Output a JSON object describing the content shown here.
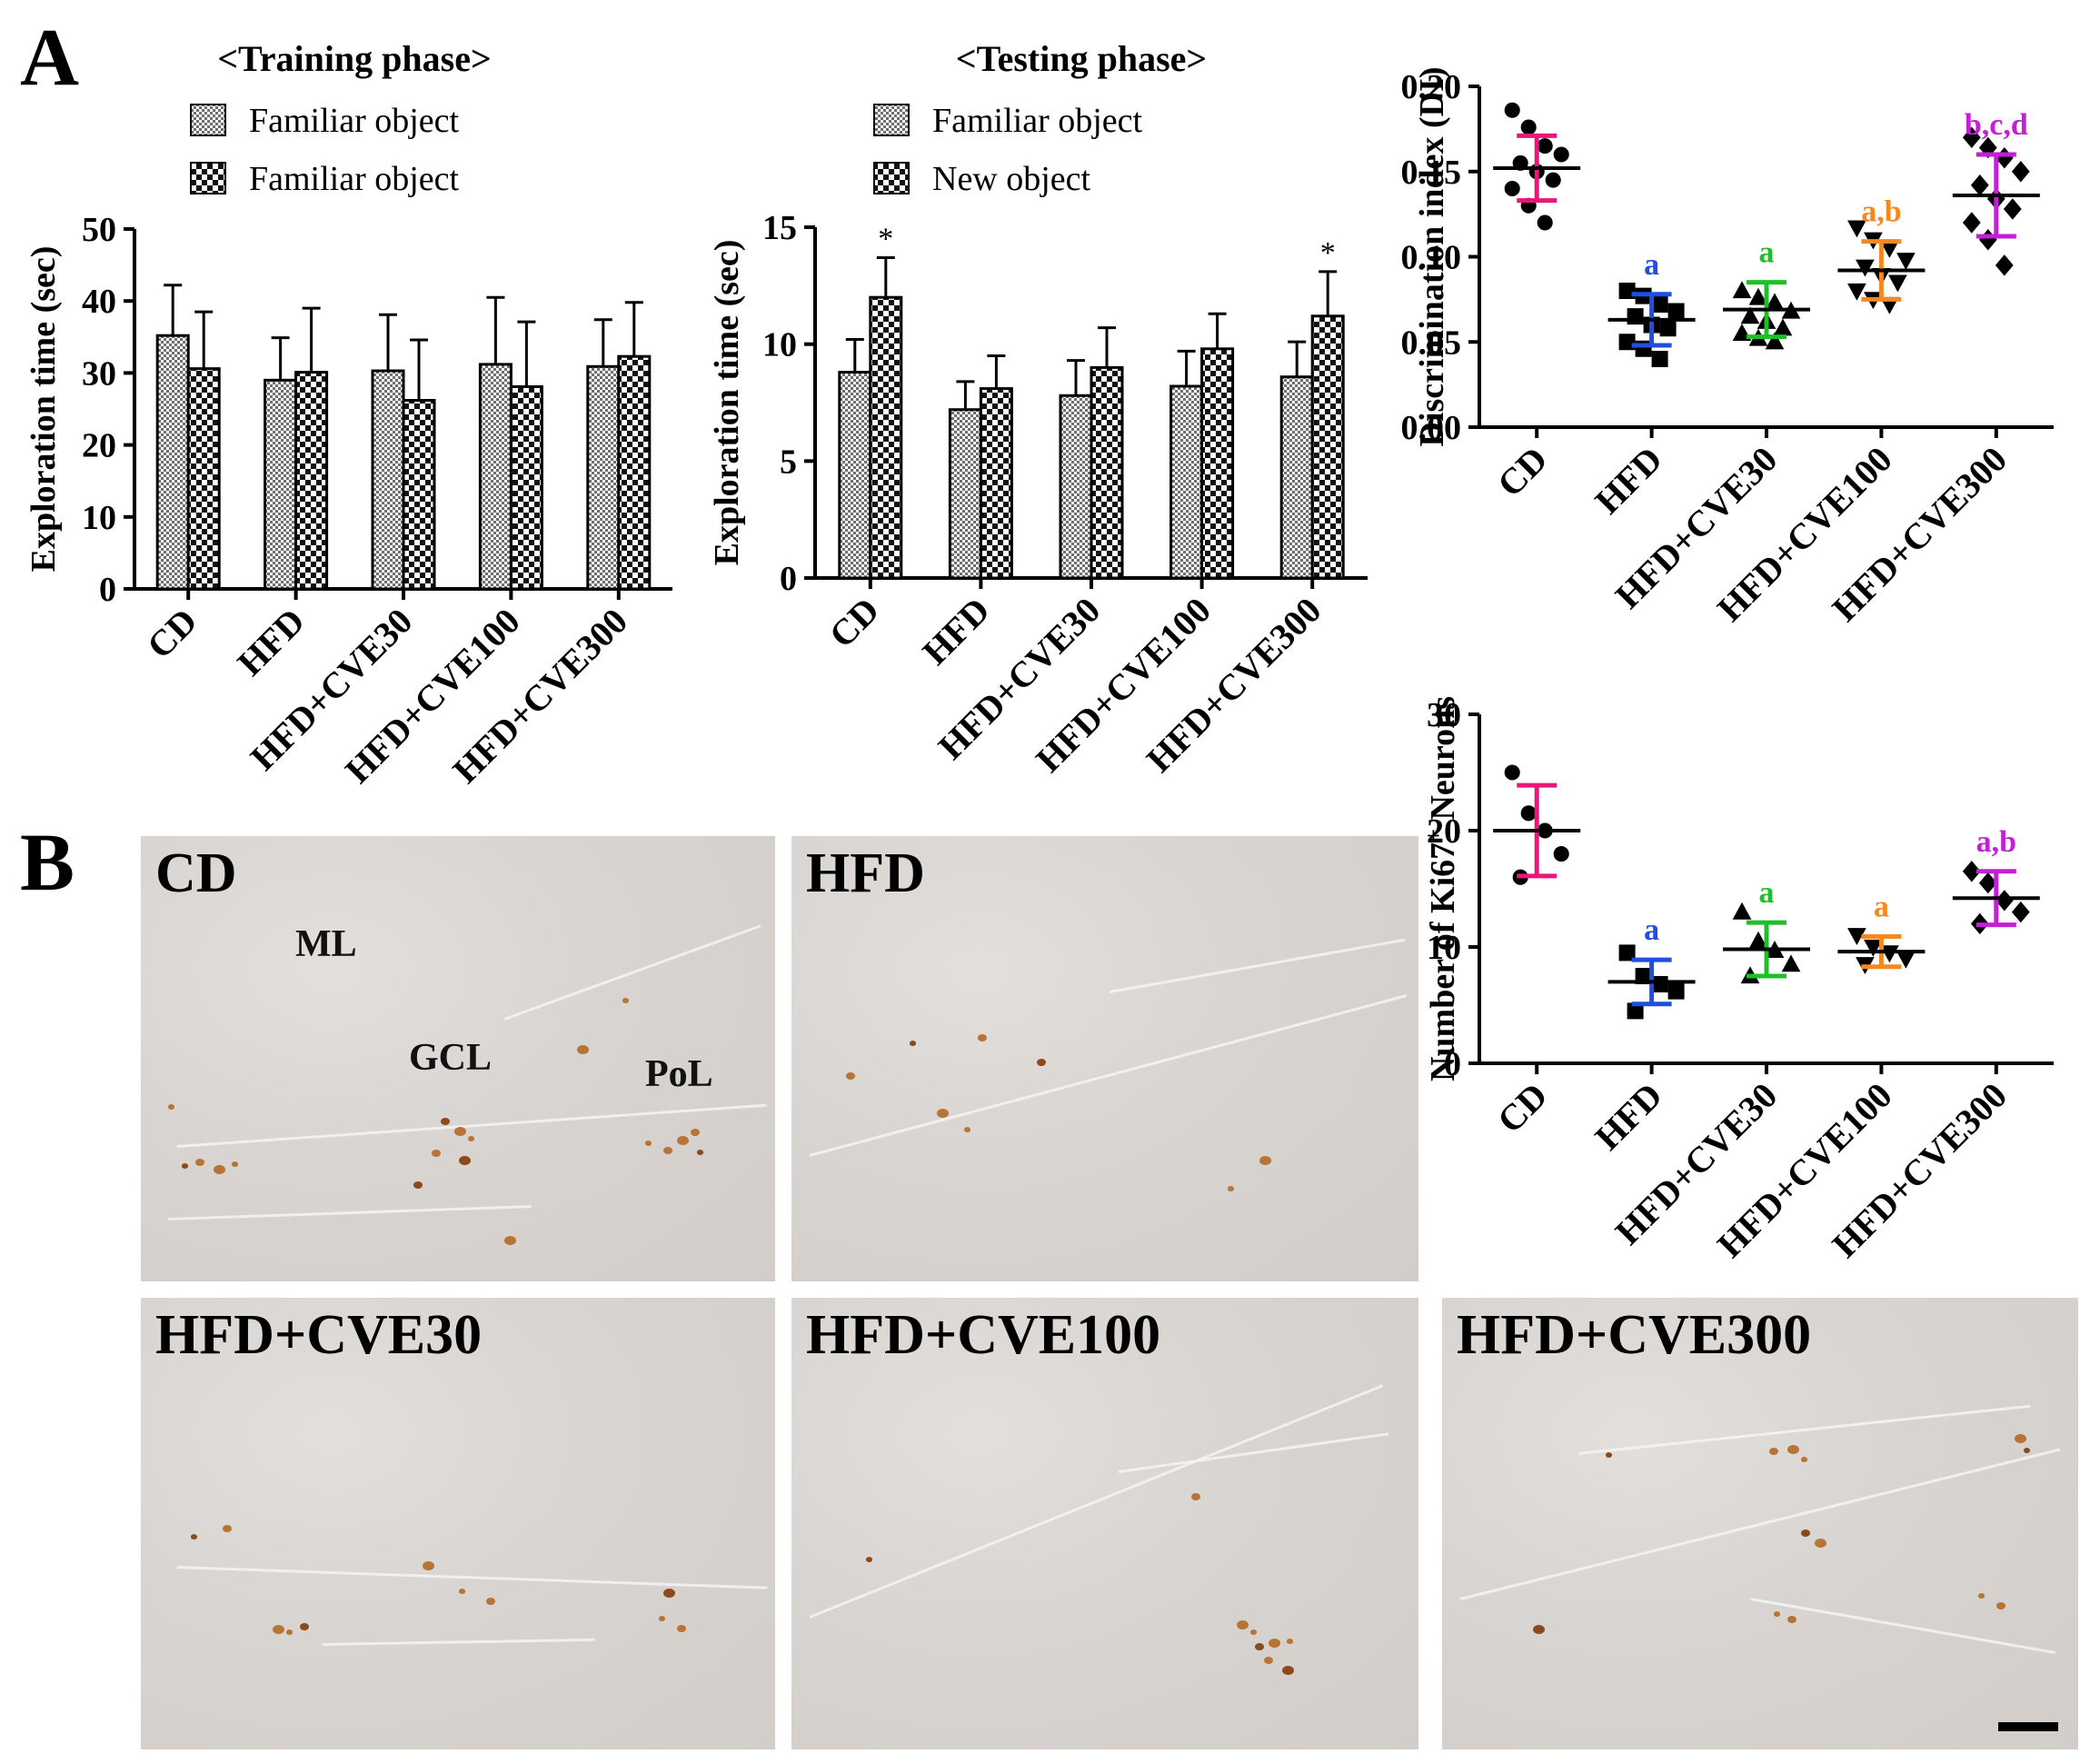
{
  "figure": {
    "panel_A_label": "A",
    "panel_B_label": "B",
    "scale_bar": "scale-bar"
  },
  "chart_data": [
    {
      "id": "training",
      "type": "bar",
      "title": "<Training phase>",
      "legend": [
        "Familiar object",
        "Familiar object"
      ],
      "ylabel": "Exploration time (sec)",
      "ylim": [
        0,
        50
      ],
      "yticks": [
        "0",
        "10",
        "20",
        "30",
        "40",
        "50"
      ],
      "categories": [
        "CD",
        "HFD",
        "HFD+CVE30",
        "HFD+CVE100",
        "HFD+CVE300"
      ],
      "series": [
        {
          "name": "Familiar object",
          "values": [
            35.2,
            29.0,
            30.3,
            31.2,
            30.9
          ],
          "errors": [
            7.0,
            5.9,
            7.8,
            9.3,
            6.5
          ]
        },
        {
          "name": "Familiar object",
          "values": [
            30.6,
            30.1,
            26.2,
            28.1,
            32.3
          ],
          "errors": [
            7.9,
            8.9,
            8.4,
            9.0,
            7.5
          ]
        }
      ],
      "annotations": []
    },
    {
      "id": "testing",
      "type": "bar",
      "title": "<Testing phase>",
      "legend": [
        "Familiar object",
        "New object"
      ],
      "ylabel": "Exploration time (sec)",
      "ylim": [
        0,
        15
      ],
      "yticks": [
        "0",
        "5",
        "10",
        "15"
      ],
      "categories": [
        "CD",
        "HFD",
        "HFD+CVE30",
        "HFD+CVE100",
        "HFD+CVE300"
      ],
      "series": [
        {
          "name": "Familiar object",
          "values": [
            8.8,
            7.2,
            7.8,
            8.2,
            8.6
          ],
          "errors": [
            1.4,
            1.2,
            1.5,
            1.5,
            1.5
          ]
        },
        {
          "name": "New object",
          "values": [
            12.0,
            8.1,
            9.0,
            9.8,
            11.2
          ],
          "errors": [
            1.7,
            1.4,
            1.7,
            1.5,
            1.9
          ]
        }
      ],
      "annotations": [
        {
          "category": "CD",
          "series": 1,
          "text": "*"
        },
        {
          "category": "HFD+CVE300",
          "series": 1,
          "text": "*"
        }
      ]
    },
    {
      "id": "di",
      "type": "scatter",
      "ylabel": "Discrimination index (DI)",
      "ylim": [
        0,
        0.2
      ],
      "yticks": [
        "0.00",
        "0.05",
        "0.10",
        "0.15",
        "0.20"
      ],
      "categories": [
        "CD",
        "HFD",
        "HFD+CVE30",
        "HFD+CVE100",
        "HFD+CVE300"
      ],
      "colors": [
        "#e6197a",
        "#1f4fe0",
        "#1fbf2a",
        "#f5891f",
        "#c21fd6"
      ],
      "markers": [
        "circle",
        "square",
        "triangle-up",
        "triangle-down",
        "diamond"
      ],
      "means": [
        0.152,
        0.063,
        0.069,
        0.092,
        0.136
      ],
      "sds": [
        0.019,
        0.015,
        0.016,
        0.017,
        0.024
      ],
      "points": [
        [
          0.186,
          0.176,
          0.165,
          0.16,
          0.155,
          0.15,
          0.145,
          0.14,
          0.13,
          0.12
        ],
        [
          0.08,
          0.077,
          0.072,
          0.068,
          0.065,
          0.06,
          0.058,
          0.05,
          0.046,
          0.04
        ],
        [
          0.08,
          0.076,
          0.073,
          0.068,
          0.065,
          0.062,
          0.058,
          0.055,
          0.052,
          0.05
        ],
        [
          0.117,
          0.11,
          0.105,
          0.098,
          0.094,
          0.089,
          0.085,
          0.08,
          0.075,
          0.072
        ],
        [
          0.17,
          0.164,
          0.158,
          0.15,
          0.142,
          0.134,
          0.128,
          0.12,
          0.11,
          0.095
        ]
      ],
      "labels": [
        "",
        "a",
        "a",
        "a,b",
        "b,c,d"
      ]
    },
    {
      "id": "ki67",
      "type": "scatter",
      "ylabel": "Number of Ki67+ Neurons",
      "ylabel_parts": [
        "Number of Ki67",
        "+",
        " Neurons"
      ],
      "ylim": [
        0,
        30
      ],
      "yticks": [
        "0",
        "10",
        "20",
        "30"
      ],
      "categories": [
        "CD",
        "HFD",
        "HFD+CVE30",
        "HFD+CVE100",
        "HFD+CVE300"
      ],
      "colors": [
        "#e6197a",
        "#1f4fe0",
        "#1fbf2a",
        "#f5891f",
        "#c21fd6"
      ],
      "markers": [
        "circle",
        "square",
        "triangle-up",
        "triangle-down",
        "diamond"
      ],
      "means": [
        20.0,
        7.0,
        9.8,
        9.6,
        14.2
      ],
      "sds": [
        3.9,
        1.9,
        2.3,
        1.3,
        2.3
      ],
      "points": [
        [
          25.0,
          21.5,
          20.0,
          18.0,
          16.0
        ],
        [
          9.5,
          7.5,
          6.8,
          6.2,
          4.5
        ],
        [
          13.0,
          10.5,
          9.7,
          8.5,
          7.5
        ],
        [
          11.0,
          10.0,
          9.5,
          9.0,
          8.5
        ],
        [
          16.5,
          15.5,
          14.0,
          13.0,
          12.0
        ]
      ],
      "labels": [
        "",
        "a",
        "a",
        "a",
        "a,b"
      ]
    }
  ],
  "photos": [
    {
      "label": "CD",
      "regions": [
        "ML",
        "GCL",
        "PoL"
      ]
    },
    {
      "label": "HFD",
      "regions": []
    },
    {
      "label": "HFD+CVE30",
      "regions": []
    },
    {
      "label": "HFD+CVE100",
      "regions": []
    },
    {
      "label": "HFD+CVE300",
      "regions": []
    }
  ]
}
